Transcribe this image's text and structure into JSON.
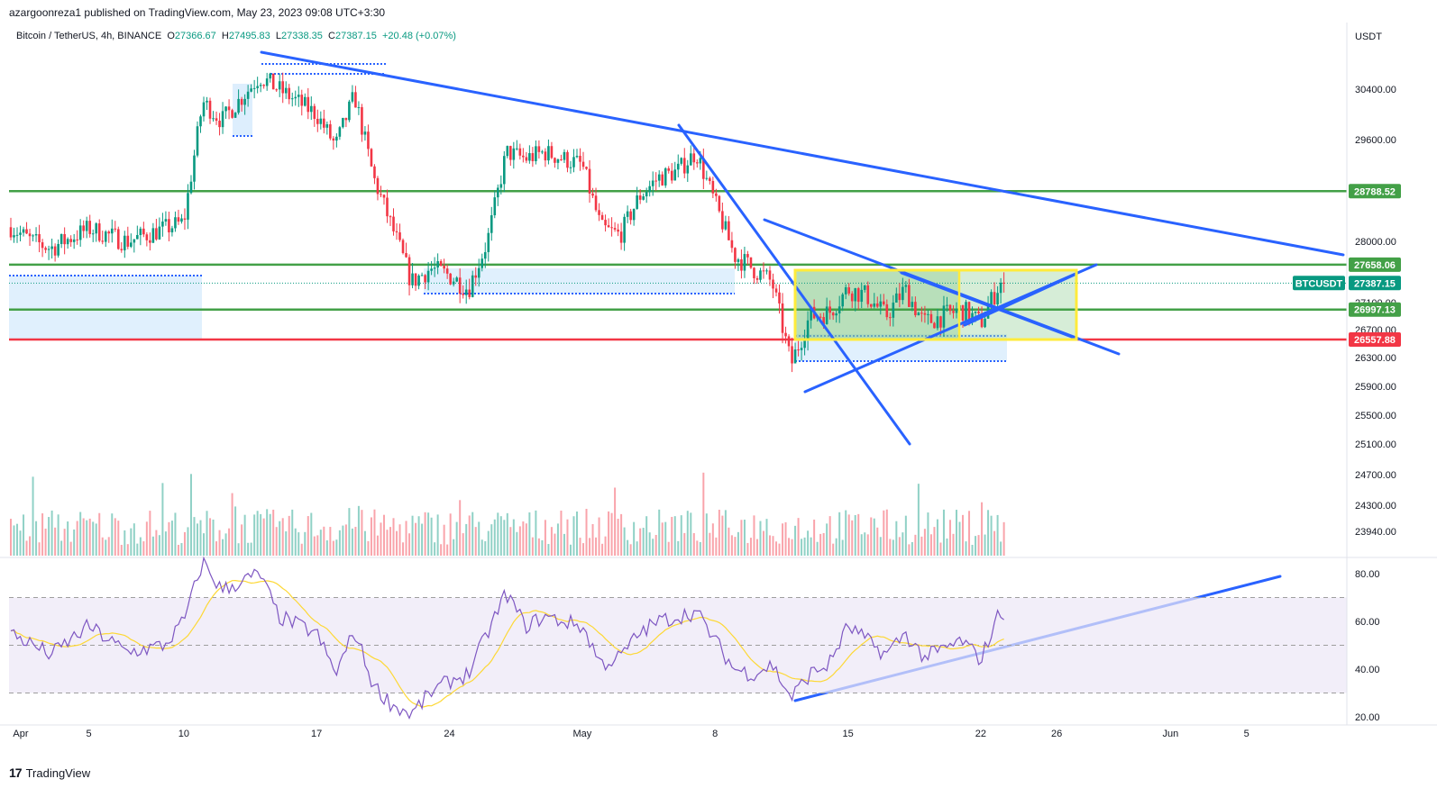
{
  "header": {
    "publisher": "azargoonreza1 published on TradingView.com, May 23, 2023 09:08 UTC+3:30",
    "symbol": "Bitcoin / TetherUS, 4h, BINANCE",
    "open_label": "O",
    "open": "27366.67",
    "high_label": "H",
    "high": "27495.83",
    "low_label": "L",
    "low": "27338.35",
    "close_label": "C",
    "close": "27387.15",
    "change": "+20.48 (+0.07%)"
  },
  "footer": {
    "brand": "TradingView",
    "brand_mark": "17"
  },
  "colors": {
    "up": "#089981",
    "down": "#f23645",
    "trend": "#2962ff",
    "support": "#43a047",
    "range_box": "#ffeb3b",
    "rsi": "#7e57c2",
    "rsi_ma": "#fdd835"
  },
  "chart_data": [
    {
      "type": "candlestick",
      "title": "",
      "currency": "USDT",
      "x_tick_labels": [
        "Apr",
        "5",
        "10",
        "17",
        "24",
        "May",
        "8",
        "15",
        "22",
        "26",
        "Jun",
        "5"
      ],
      "price_ticks": [
        "30400.00",
        "29600.00",
        "28000.00",
        "27100.00",
        "26700.00",
        "26300.00",
        "25900.00",
        "25500.00",
        "25100.00",
        "24700.00",
        "24300.00",
        "23940.00"
      ],
      "ylim": [
        23800,
        31000
      ],
      "horizontal_levels": [
        {
          "label": "28788.52",
          "value": 28788.52,
          "color": "#43a047"
        },
        {
          "label": "27658.06",
          "value": 27658.06,
          "color": "#43a047"
        },
        {
          "label": "26997.13",
          "value": 26997.13,
          "color": "#43a047"
        },
        {
          "label": "26557.88",
          "value": 26557.88,
          "color": "#f23645"
        }
      ],
      "last_price": {
        "label": "BTCUSDT",
        "value": "27387.15"
      },
      "series": [
        {
          "name": "BTCUSDT",
          "anchors": [
            [
              "2023-03-31",
              28400
            ],
            [
              "2023-04-02",
              28000
            ],
            [
              "2023-04-03",
              27900
            ],
            [
              "2023-04-05",
              28200
            ],
            [
              "2023-04-07",
              28000
            ],
            [
              "2023-04-09",
              28200
            ],
            [
              "2023-04-10",
              28300
            ],
            [
              "2023-04-11",
              30200
            ],
            [
              "2023-04-12",
              29900
            ],
            [
              "2023-04-14",
              30600
            ],
            [
              "2023-04-15",
              30400
            ],
            [
              "2023-04-17",
              30000
            ],
            [
              "2023-04-18",
              29500
            ],
            [
              "2023-04-19",
              30300
            ],
            [
              "2023-04-20",
              29000
            ],
            [
              "2023-04-21",
              28200
            ],
            [
              "2023-04-22",
              27400
            ],
            [
              "2023-04-23",
              27600
            ],
            [
              "2023-04-24",
              27500
            ],
            [
              "2023-04-25",
              27300
            ],
            [
              "2023-04-26",
              28000
            ],
            [
              "2023-04-27",
              29400
            ],
            [
              "2023-04-28",
              29300
            ],
            [
              "2023-04-29",
              29400
            ],
            [
              "2023-04-30",
              29300
            ],
            [
              "2023-05-01",
              29200
            ],
            [
              "2023-05-02",
              28200
            ],
            [
              "2023-05-03",
              28100
            ],
            [
              "2023-05-04",
              28700
            ],
            [
              "2023-05-05",
              29000
            ],
            [
              "2023-05-06",
              29100
            ],
            [
              "2023-05-07",
              29400
            ],
            [
              "2023-05-08",
              28600
            ],
            [
              "2023-05-09",
              27800
            ],
            [
              "2023-05-10",
              27600
            ],
            [
              "2023-05-11",
              27400
            ],
            [
              "2023-05-12",
              26200
            ],
            [
              "2023-05-13",
              26900
            ],
            [
              "2023-05-14",
              26950
            ],
            [
              "2023-05-15",
              27300
            ],
            [
              "2023-05-16",
              27200
            ],
            [
              "2023-05-17",
              26900
            ],
            [
              "2023-05-18",
              27300
            ],
            [
              "2023-05-19",
              26800
            ],
            [
              "2023-05-20",
              26900
            ],
            [
              "2023-05-21",
              27000
            ],
            [
              "2023-05-22",
              26800
            ],
            [
              "2023-05-23",
              27387
            ]
          ]
        }
      ],
      "volume_series": {
        "name": "Volume"
      }
    },
    {
      "type": "line",
      "title": "",
      "y_ticks": [
        "80.00",
        "60.00",
        "40.00",
        "20.00"
      ],
      "ylim": [
        20,
        80
      ],
      "bands": [
        70,
        50,
        30
      ],
      "series": [
        {
          "name": "RSI",
          "anchors": [
            [
              "2023-03-31",
              59
            ],
            [
              "2023-04-03",
              46
            ],
            [
              "2023-04-05",
              58
            ],
            [
              "2023-04-07",
              47
            ],
            [
              "2023-04-09",
              50
            ],
            [
              "2023-04-10",
              60
            ],
            [
              "2023-04-11",
              85
            ],
            [
              "2023-04-12",
              73
            ],
            [
              "2023-04-14",
              80
            ],
            [
              "2023-04-15",
              62
            ],
            [
              "2023-04-17",
              55
            ],
            [
              "2023-04-18",
              38
            ],
            [
              "2023-04-19",
              56
            ],
            [
              "2023-04-20",
              33
            ],
            [
              "2023-04-21",
              25
            ],
            [
              "2023-04-22",
              21
            ],
            [
              "2023-04-23",
              30
            ],
            [
              "2023-04-24",
              35
            ],
            [
              "2023-04-25",
              38
            ],
            [
              "2023-04-26",
              55
            ],
            [
              "2023-04-27",
              72
            ],
            [
              "2023-04-28",
              58
            ],
            [
              "2023-04-29",
              62
            ],
            [
              "2023-04-30",
              60
            ],
            [
              "2023-05-01",
              58
            ],
            [
              "2023-05-02",
              42
            ],
            [
              "2023-05-03",
              45
            ],
            [
              "2023-05-04",
              55
            ],
            [
              "2023-05-05",
              60
            ],
            [
              "2023-05-06",
              62
            ],
            [
              "2023-05-07",
              64
            ],
            [
              "2023-05-08",
              52
            ],
            [
              "2023-05-09",
              40
            ],
            [
              "2023-05-10",
              38
            ],
            [
              "2023-05-11",
              42
            ],
            [
              "2023-05-12",
              28
            ],
            [
              "2023-05-13",
              38
            ],
            [
              "2023-05-14",
              42
            ],
            [
              "2023-05-15",
              58
            ],
            [
              "2023-05-16",
              52
            ],
            [
              "2023-05-17",
              46
            ],
            [
              "2023-05-18",
              55
            ],
            [
              "2023-05-19",
              45
            ],
            [
              "2023-05-20",
              48
            ],
            [
              "2023-05-21",
              52
            ],
            [
              "2023-05-22",
              44
            ],
            [
              "2023-05-23",
              64
            ]
          ]
        },
        {
          "name": "RSI MA"
        }
      ]
    }
  ]
}
